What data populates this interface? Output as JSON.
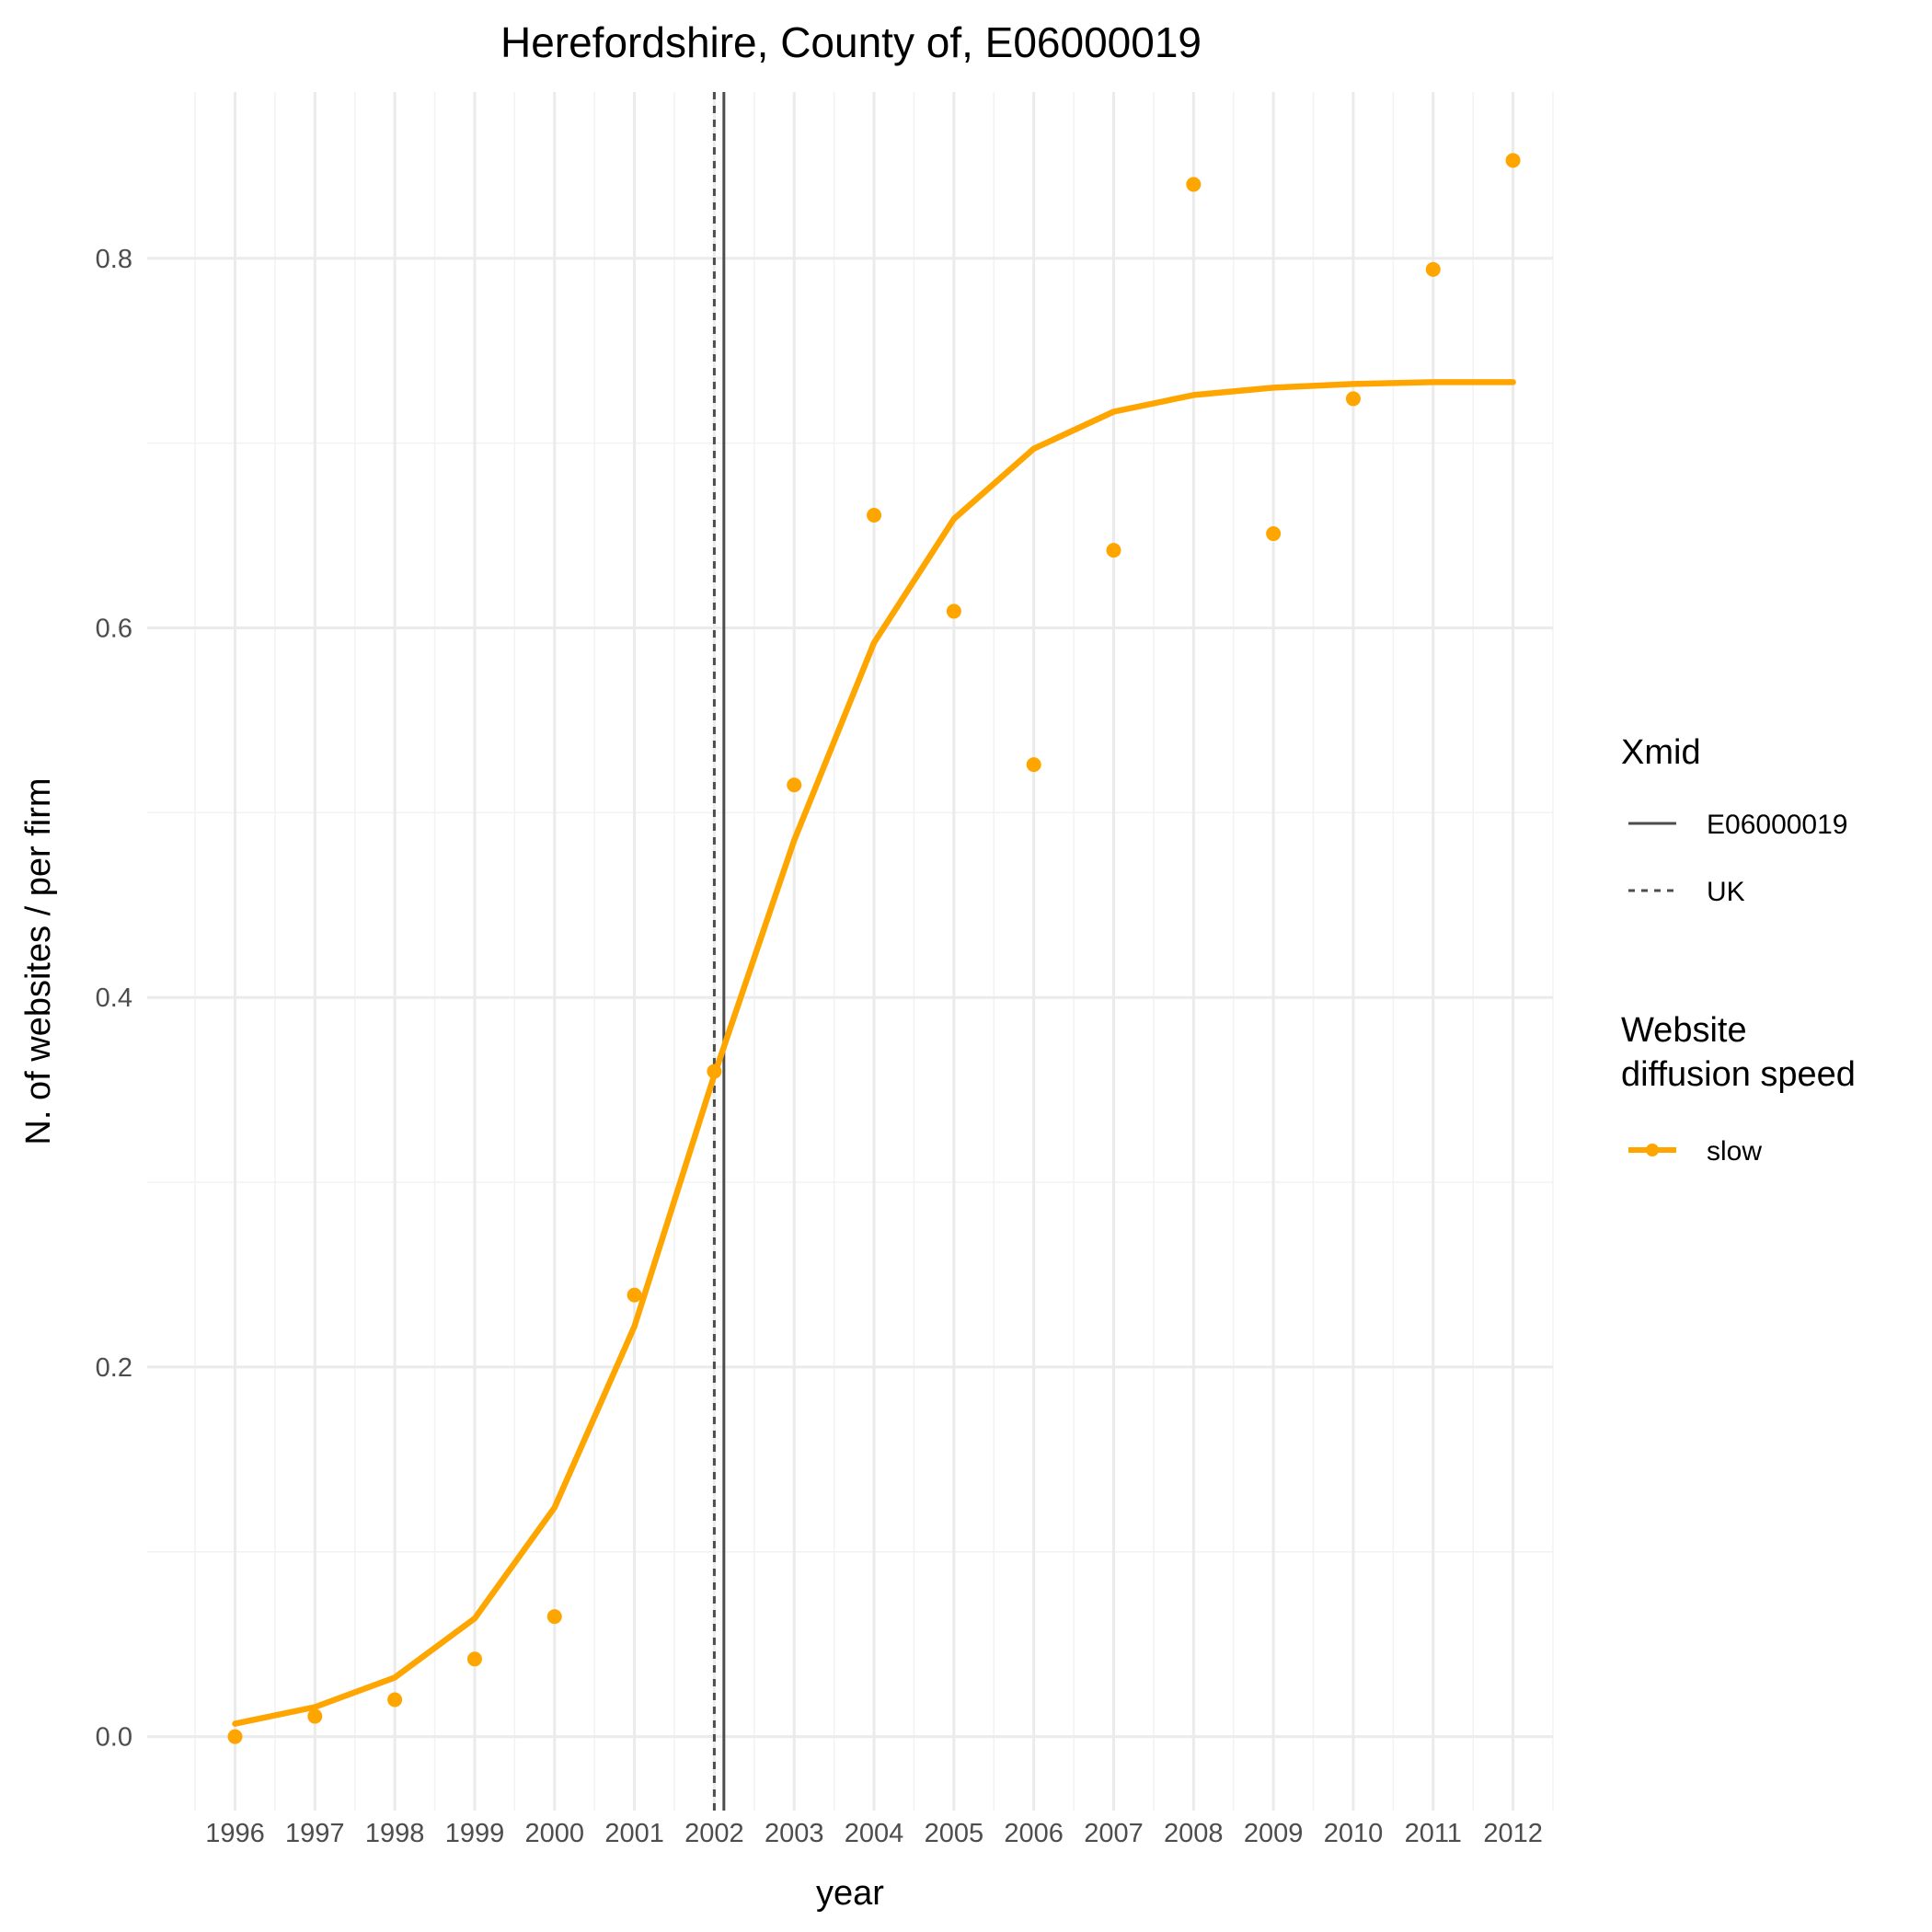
{
  "chart_data": {
    "type": "line",
    "title": "Herefordshire, County of, E06000019",
    "xlabel": "year",
    "ylabel": "N. of websites / per firm",
    "x": [
      1996,
      1997,
      1998,
      1999,
      2000,
      2001,
      2002,
      2003,
      2004,
      2005,
      2006,
      2007,
      2008,
      2009,
      2010,
      2011,
      2012
    ],
    "x_tick_labels": [
      "1996",
      "1997",
      "1998",
      "1999",
      "2000",
      "2001",
      "2002",
      "2003",
      "2004",
      "2005",
      "2006",
      "2007",
      "2008",
      "2009",
      "2010",
      "2011",
      "2012"
    ],
    "xlim": [
      1994.9,
      2012.5
    ],
    "y_ticks": [
      0.0,
      0.2,
      0.4,
      0.6,
      0.8
    ],
    "y_tick_labels": [
      "0.0",
      "0.2",
      "0.4",
      "0.6",
      "0.8"
    ],
    "ylim": [
      -0.04,
      0.89
    ],
    "grid": true,
    "series": [
      {
        "name": "slow",
        "color": "#FFA500",
        "points": [
          0.0,
          0.011,
          0.02,
          0.042,
          0.065,
          0.239,
          0.36,
          0.515,
          0.661,
          0.609,
          0.526,
          0.642,
          0.84,
          0.651,
          0.724,
          0.794,
          0.853
        ],
        "fit": [
          0.007,
          0.016,
          0.032,
          0.064,
          0.124,
          0.222,
          0.358,
          0.485,
          0.592,
          0.659,
          0.697,
          0.717,
          0.726,
          0.73,
          0.732,
          0.733,
          0.733
        ]
      }
    ],
    "vlines": [
      {
        "name": "E06000019",
        "x": 2002.12,
        "style": "solid",
        "color": "#4d4d4d"
      },
      {
        "name": "UK",
        "x": 2002.0,
        "style": "dashed",
        "color": "#4d4d4d"
      }
    ],
    "legend": {
      "position": "right",
      "xmid_title": "Xmid",
      "speed_title_line1": "Website",
      "speed_title_line2": "diffusion speed"
    }
  }
}
